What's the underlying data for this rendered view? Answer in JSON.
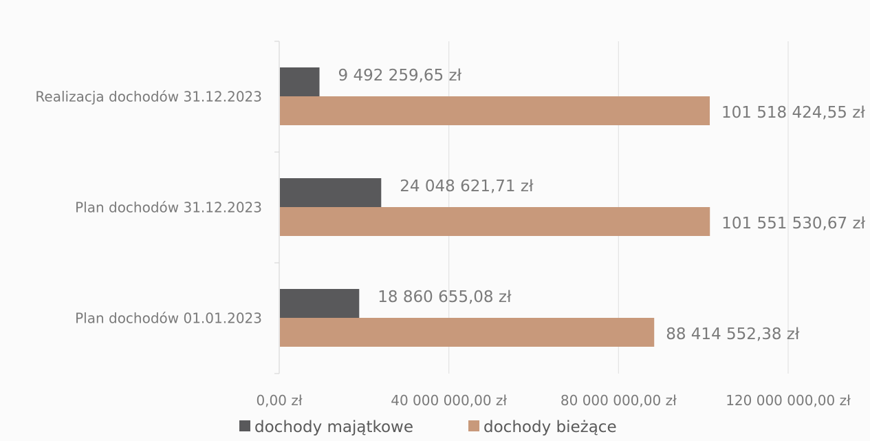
{
  "chart_data": {
    "type": "bar",
    "orientation": "horizontal",
    "categories": [
      "Plan dochodów 01.01.2023",
      "Plan dochodów 31.12.2023",
      "Realizacja dochodów 31.12.2023"
    ],
    "series": [
      {
        "name": "dochody majątkowe",
        "color": "#59595b",
        "values": [
          18860655.08,
          24048621.71,
          9492259.65
        ],
        "labels": [
          "18 860 655,08 zł",
          "24 048 621,71 zł",
          "9 492 259,65 zł"
        ]
      },
      {
        "name": "dochody bieżące",
        "color": "#c8997b",
        "values": [
          88414552.38,
          101551530.67,
          101518424.55
        ],
        "labels": [
          "88 414 552,38 zł",
          "101 551 530,67 zł",
          "101 518 424,55 zł"
        ]
      }
    ],
    "xlim": [
      0,
      120000000
    ],
    "xticks": [
      0,
      40000000,
      80000000,
      120000000
    ],
    "xtick_labels": [
      "0,00 zł",
      "40 000 000,00 zł",
      "80 000 000,00 zł",
      "120 000 000,00 zł"
    ],
    "grid": true,
    "legend_position": "bottom",
    "gridline_color": "#e3e3e3",
    "axis_color": "#d8d8d8"
  }
}
